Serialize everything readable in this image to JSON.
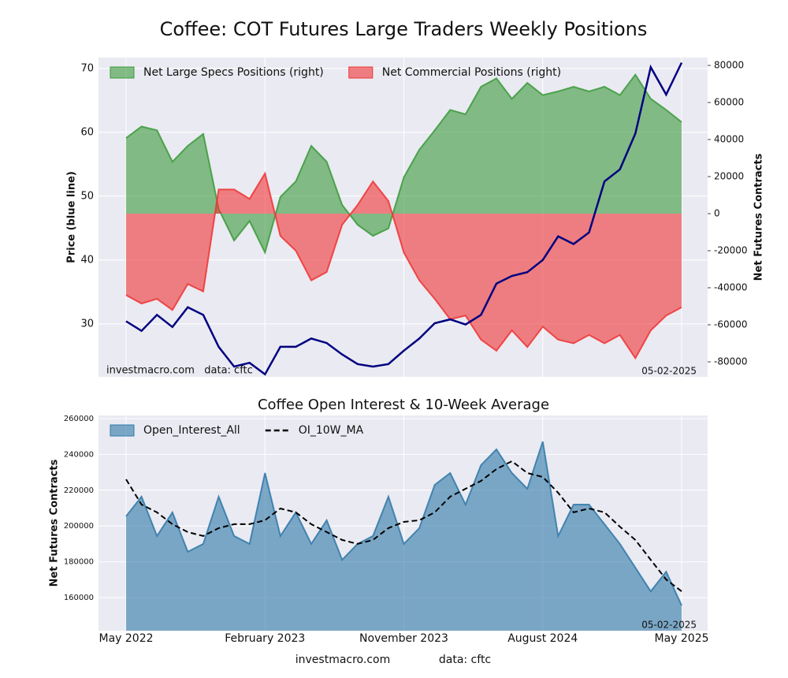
{
  "chart_data": [
    {
      "type": "area",
      "title": "Coffee: COT Futures Large Traders Weekly Positions",
      "ylabel": "Price (blue line)",
      "y2label": "Net Futures Contracts",
      "source": "investmacro.com   data: cftc",
      "date": "05-02-2025",
      "x": [
        "2022-05",
        "2022-06",
        "2022-07",
        "2022-08",
        "2022-09",
        "2022-10",
        "2022-11",
        "2022-12",
        "2023-01",
        "2023-02",
        "2023-03",
        "2023-04",
        "2023-05",
        "2023-06",
        "2023-07",
        "2023-08",
        "2023-09",
        "2023-10",
        "2023-11",
        "2023-12",
        "2024-01",
        "2024-02",
        "2024-03",
        "2024-04",
        "2024-05",
        "2024-06",
        "2024-07",
        "2024-08",
        "2024-09",
        "2024-10",
        "2024-11",
        "2024-12",
        "2025-01",
        "2025-02",
        "2025-03",
        "2025-04",
        "2025-05"
      ],
      "ylim": [
        21.7,
        71.7
      ],
      "yticks": [
        30,
        40,
        50,
        60,
        70
      ],
      "y2lim": [
        -88085,
        84255
      ],
      "y2ticks": [
        -80000,
        -60000,
        -40000,
        -20000,
        0,
        20000,
        40000,
        60000,
        80000
      ],
      "grid": true,
      "legend": "upper left",
      "series": [
        {
          "name": "Net Large Specs Positions (right)",
          "kind": "area",
          "axis": "y2",
          "color": "#3a9a3a",
          "values": [
            40800,
            47000,
            45000,
            28000,
            36600,
            43000,
            2500,
            -14500,
            -4000,
            -21000,
            9000,
            17400,
            36600,
            28000,
            4700,
            -6000,
            -12000,
            -8000,
            19600,
            34500,
            45000,
            56000,
            53600,
            68500,
            73000,
            62000,
            70600,
            64000,
            66000,
            68500,
            66000,
            68500,
            64000,
            75000,
            62000,
            56000,
            49400
          ]
        },
        {
          "name": "Net Commercial Positions (right)",
          "kind": "area",
          "axis": "y2",
          "color": "#ee3333",
          "values": [
            -44000,
            -48500,
            -46000,
            -52000,
            -38000,
            -42000,
            13000,
            13000,
            8000,
            21700,
            -12000,
            -20000,
            -36000,
            -31500,
            -6000,
            4700,
            17400,
            6800,
            -21000,
            -36000,
            -46000,
            -57000,
            -55000,
            -68000,
            -74000,
            -63000,
            -72000,
            -61000,
            -68000,
            -70000,
            -65500,
            -70000,
            -65500,
            -78000,
            -63000,
            -55000,
            -50600
          ]
        },
        {
          "kind": "line",
          "axis": "y",
          "color": "#000080",
          "values": [
            30.4,
            28.9,
            31.4,
            29.5,
            32.6,
            31.4,
            26.4,
            23.3,
            23.9,
            22.1,
            26.4,
            26.4,
            27.7,
            27.0,
            25.2,
            23.7,
            23.3,
            23.7,
            25.8,
            27.7,
            30.1,
            30.7,
            29.9,
            31.4,
            36.3,
            37.5,
            38.1,
            40.0,
            43.7,
            42.5,
            44.3,
            52.3,
            54.2,
            59.8,
            70.2,
            65.9,
            70.9
          ]
        }
      ]
    },
    {
      "type": "area",
      "title": "Coffee Open Interest & 10-Week Average",
      "ylabel": "Net Futures Contracts",
      "date": "05-02-2025",
      "x": [
        "2022-05",
        "2022-06",
        "2022-07",
        "2022-08",
        "2022-09",
        "2022-10",
        "2022-11",
        "2022-12",
        "2023-01",
        "2023-02",
        "2023-03",
        "2023-04",
        "2023-05",
        "2023-06",
        "2023-07",
        "2023-08",
        "2023-09",
        "2023-10",
        "2023-11",
        "2023-12",
        "2024-01",
        "2024-02",
        "2024-03",
        "2024-04",
        "2024-05",
        "2024-06",
        "2024-07",
        "2024-08",
        "2024-09",
        "2024-10",
        "2024-11",
        "2024-12",
        "2025-01",
        "2025-02",
        "2025-03",
        "2025-04",
        "2025-05"
      ],
      "xticks": [
        {
          "value": "2022-05",
          "label": "May 2022"
        },
        {
          "value": "2023-02",
          "label": "February 2023"
        },
        {
          "value": "2023-11",
          "label": "November 2023"
        },
        {
          "value": "2024-08",
          "label": "August 2024"
        },
        {
          "value": "2025-05",
          "label": "May 2025"
        }
      ],
      "ylim": [
        141500,
        261760
      ],
      "yticks": [
        160000,
        180000,
        200000,
        220000,
        240000,
        260000
      ],
      "grid": true,
      "legend": "upper left",
      "series": [
        {
          "name": "Open_Interest_All",
          "kind": "area",
          "axis": "y",
          "color": "#2f78a8",
          "values": [
            205400,
            216400,
            194400,
            207600,
            185600,
            190000,
            216400,
            194400,
            190000,
            229600,
            194400,
            207600,
            190000,
            203200,
            181100,
            190000,
            194400,
            216400,
            190000,
            198800,
            223000,
            229600,
            212000,
            234000,
            242800,
            229600,
            220800,
            247200,
            194400,
            212000,
            212000,
            201000,
            190000,
            176700,
            163500,
            174500,
            155600
          ]
        },
        {
          "name": "OI_10W_MA",
          "kind": "line",
          "axis": "y",
          "color": "#000000",
          "dash": true,
          "values": [
            226100,
            212000,
            207600,
            201000,
            196600,
            194400,
            198800,
            201000,
            201000,
            203200,
            209800,
            207600,
            201000,
            196600,
            192200,
            190000,
            192200,
            198800,
            202300,
            203200,
            207600,
            216400,
            220800,
            225200,
            231800,
            236200,
            229600,
            227400,
            218600,
            207600,
            209800,
            207600,
            199600,
            192200,
            181100,
            170100,
            163500
          ]
        }
      ]
    }
  ],
  "footer": {
    "site": "investmacro.com",
    "source": "data: cftc"
  }
}
